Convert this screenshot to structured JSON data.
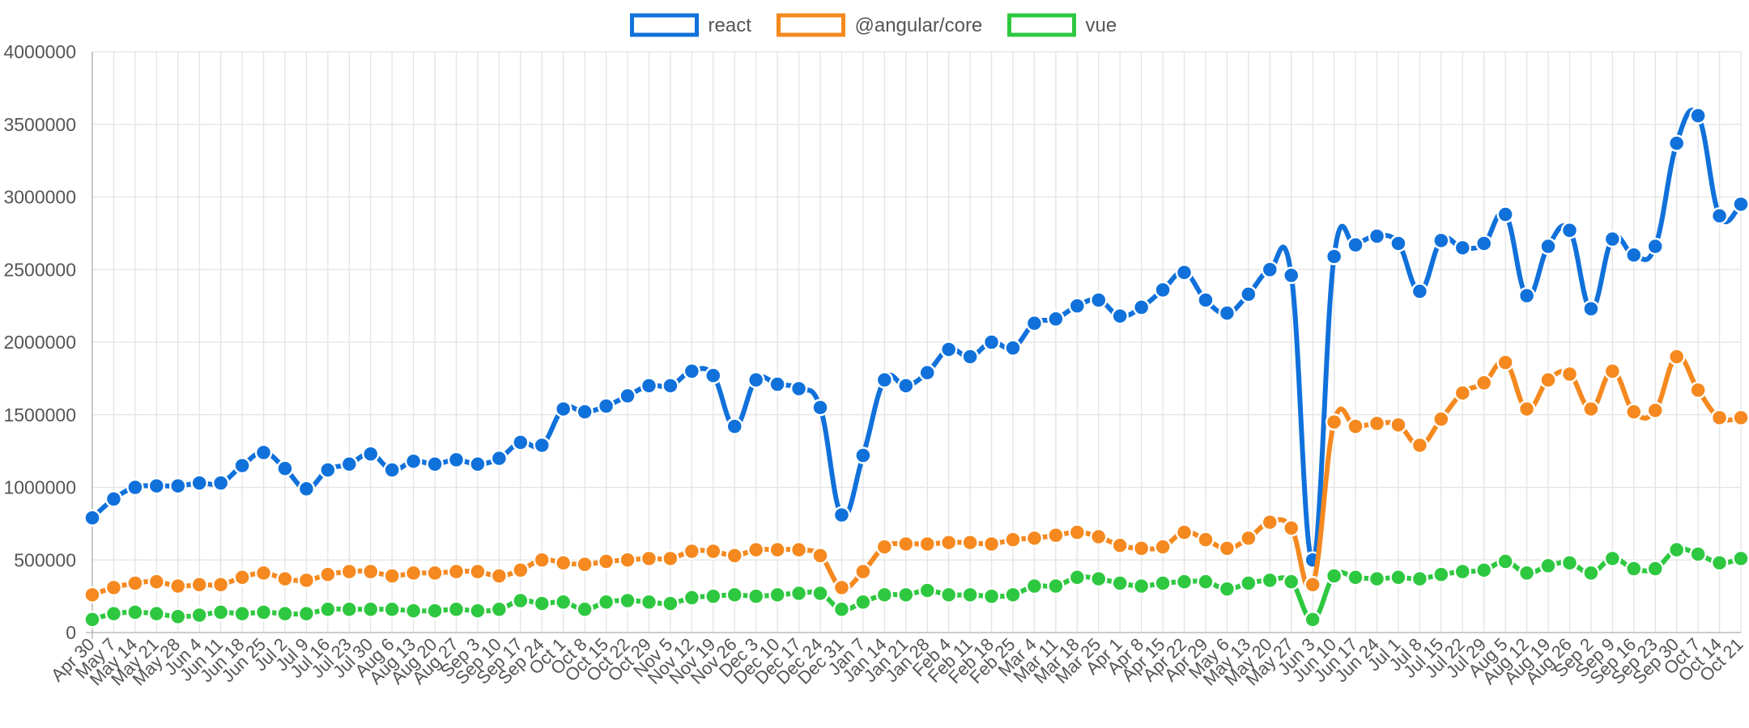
{
  "chart_data": {
    "type": "line",
    "title": "",
    "xlabel": "",
    "ylabel": "",
    "ylim": [
      0,
      4000000
    ],
    "yticks": [
      0,
      500000,
      1000000,
      1500000,
      2000000,
      2500000,
      3000000,
      3500000,
      4000000
    ],
    "grid": true,
    "legend_position": "top-center",
    "x": [
      "Apr 30",
      "May 7",
      "May 14",
      "May 21",
      "May 28",
      "Jun 4",
      "Jun 11",
      "Jun 18",
      "Jun 25",
      "Jul 2",
      "Jul 9",
      "Jul 16",
      "Jul 23",
      "Jul 30",
      "Aug 6",
      "Aug 13",
      "Aug 20",
      "Aug 27",
      "Sep 3",
      "Sep 10",
      "Sep 17",
      "Sep 24",
      "Oct 1",
      "Oct 8",
      "Oct 15",
      "Oct 22",
      "Oct 29",
      "Nov 5",
      "Nov 12",
      "Nov 19",
      "Nov 26",
      "Dec 3",
      "Dec 10",
      "Dec 17",
      "Dec 24",
      "Dec 31",
      "Jan 7",
      "Jan 14",
      "Jan 21",
      "Jan 28",
      "Feb 4",
      "Feb 11",
      "Feb 18",
      "Feb 25",
      "Mar 4",
      "Mar 11",
      "Mar 18",
      "Mar 25",
      "Apr 1",
      "Apr 8",
      "Apr 15",
      "Apr 22",
      "Apr 29",
      "May 6",
      "May 13",
      "May 20",
      "May 27",
      "Jun 3",
      "Jun 10",
      "Jun 17",
      "Jun 24",
      "Jul 1",
      "Jul 8",
      "Jul 15",
      "Jul 22",
      "Jul 29",
      "Aug 5",
      "Aug 12",
      "Aug 19",
      "Aug 26",
      "Sep 2",
      "Sep 9",
      "Sep 16",
      "Sep 23",
      "Sep 30",
      "Oct 7",
      "Oct 14",
      "Oct 21"
    ],
    "series": [
      {
        "name": "react",
        "color": "#1071db",
        "values": [
          790000,
          920000,
          1000000,
          1010000,
          1010000,
          1030000,
          1030000,
          1150000,
          1240000,
          1130000,
          990000,
          1120000,
          1160000,
          1230000,
          1120000,
          1180000,
          1160000,
          1190000,
          1160000,
          1200000,
          1310000,
          1290000,
          1540000,
          1520000,
          1560000,
          1630000,
          1700000,
          1700000,
          1800000,
          1770000,
          1420000,
          1740000,
          1710000,
          1680000,
          1550000,
          810000,
          1220000,
          1740000,
          1700000,
          1790000,
          1950000,
          1900000,
          2000000,
          1960000,
          2130000,
          2160000,
          2250000,
          2290000,
          2180000,
          2240000,
          2360000,
          2480000,
          2290000,
          2200000,
          2330000,
          2500000,
          2460000,
          500000,
          2590000,
          2670000,
          2730000,
          2680000,
          2350000,
          2700000,
          2650000,
          2680000,
          2880000,
          2320000,
          2660000,
          2770000,
          2230000,
          2710000,
          2600000,
          2660000,
          3370000,
          3560000,
          2870000,
          2950000
        ]
      },
      {
        "name": "@angular/core",
        "color": "#f5891f",
        "values": [
          260000,
          310000,
          340000,
          350000,
          320000,
          330000,
          330000,
          380000,
          410000,
          370000,
          360000,
          400000,
          420000,
          420000,
          390000,
          410000,
          410000,
          420000,
          420000,
          390000,
          430000,
          500000,
          480000,
          470000,
          490000,
          500000,
          510000,
          510000,
          560000,
          560000,
          530000,
          570000,
          570000,
          570000,
          530000,
          310000,
          420000,
          590000,
          610000,
          610000,
          620000,
          620000,
          610000,
          640000,
          650000,
          670000,
          690000,
          660000,
          600000,
          580000,
          590000,
          690000,
          640000,
          580000,
          650000,
          760000,
          720000,
          330000,
          1450000,
          1420000,
          1440000,
          1430000,
          1290000,
          1470000,
          1650000,
          1720000,
          1860000,
          1540000,
          1740000,
          1780000,
          1540000,
          1800000,
          1520000,
          1530000,
          1900000,
          1670000,
          1480000,
          1480000
        ]
      },
      {
        "name": "vue",
        "color": "#2ec840",
        "values": [
          90000,
          130000,
          140000,
          130000,
          110000,
          120000,
          140000,
          130000,
          140000,
          130000,
          130000,
          160000,
          160000,
          160000,
          160000,
          150000,
          150000,
          160000,
          150000,
          160000,
          220000,
          200000,
          210000,
          160000,
          210000,
          220000,
          210000,
          200000,
          240000,
          250000,
          260000,
          250000,
          260000,
          270000,
          270000,
          160000,
          210000,
          260000,
          260000,
          290000,
          260000,
          260000,
          250000,
          260000,
          320000,
          320000,
          380000,
          370000,
          340000,
          320000,
          340000,
          350000,
          350000,
          300000,
          340000,
          360000,
          350000,
          90000,
          390000,
          380000,
          370000,
          380000,
          370000,
          400000,
          420000,
          430000,
          490000,
          410000,
          460000,
          480000,
          410000,
          510000,
          440000,
          440000,
          570000,
          540000,
          480000,
          510000
        ]
      }
    ]
  }
}
